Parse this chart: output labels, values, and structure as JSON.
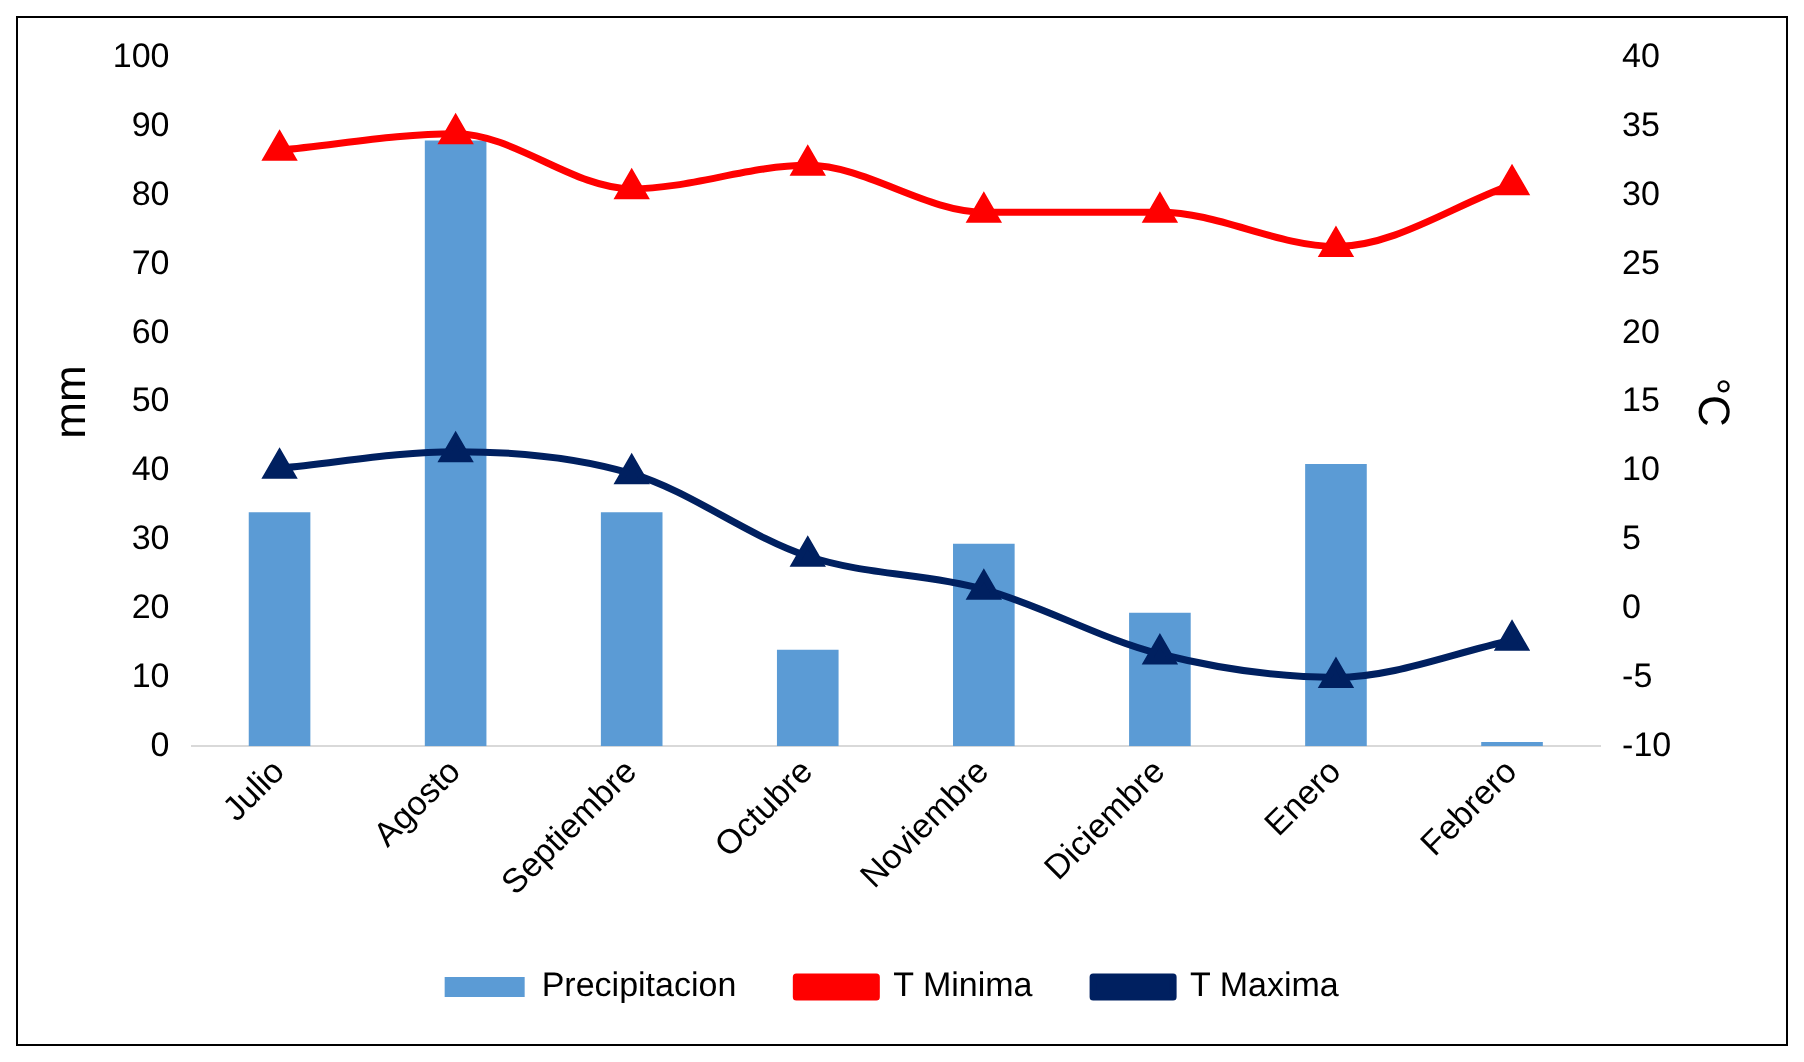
{
  "chart_data": {
    "type": "bar",
    "ylabel": "mm",
    "y2label": "°C",
    "categories": [
      "Julio",
      "Agosto",
      "Septiembre",
      "Octubre",
      "Noviembre",
      "Diciembre",
      "Enero",
      "Febrero"
    ],
    "series": [
      {
        "name": "Precipitacion",
        "color": "#5b9bd5",
        "values": [
          34,
          88,
          34,
          14,
          29.4,
          19.4,
          41,
          0.6
        ]
      },
      {
        "name": "T Minima",
        "type": "line",
        "axis": "y2",
        "color": "#ff0000",
        "values": [
          33.3,
          34.5,
          30.5,
          32.2,
          28.8,
          28.8,
          26.3,
          30.8
        ]
      },
      {
        "name": "T Maxima",
        "type": "line",
        "axis": "y2",
        "color": "#002060",
        "values": [
          10.2,
          11.4,
          9.8,
          3.8,
          1.4,
          -3.3,
          -5,
          -2.3
        ]
      }
    ],
    "ylim": [
      0,
      100
    ],
    "yticks": [
      0,
      10,
      20,
      30,
      40,
      50,
      60,
      70,
      80,
      90,
      100
    ],
    "y2lim": [
      -10,
      40
    ],
    "y2ticks": [
      -10,
      -5,
      0,
      5,
      10,
      15,
      20,
      25,
      30,
      35,
      40
    ],
    "grid": false,
    "legend": "bottom",
    "marker": "triangle",
    "line_style": "solid"
  }
}
